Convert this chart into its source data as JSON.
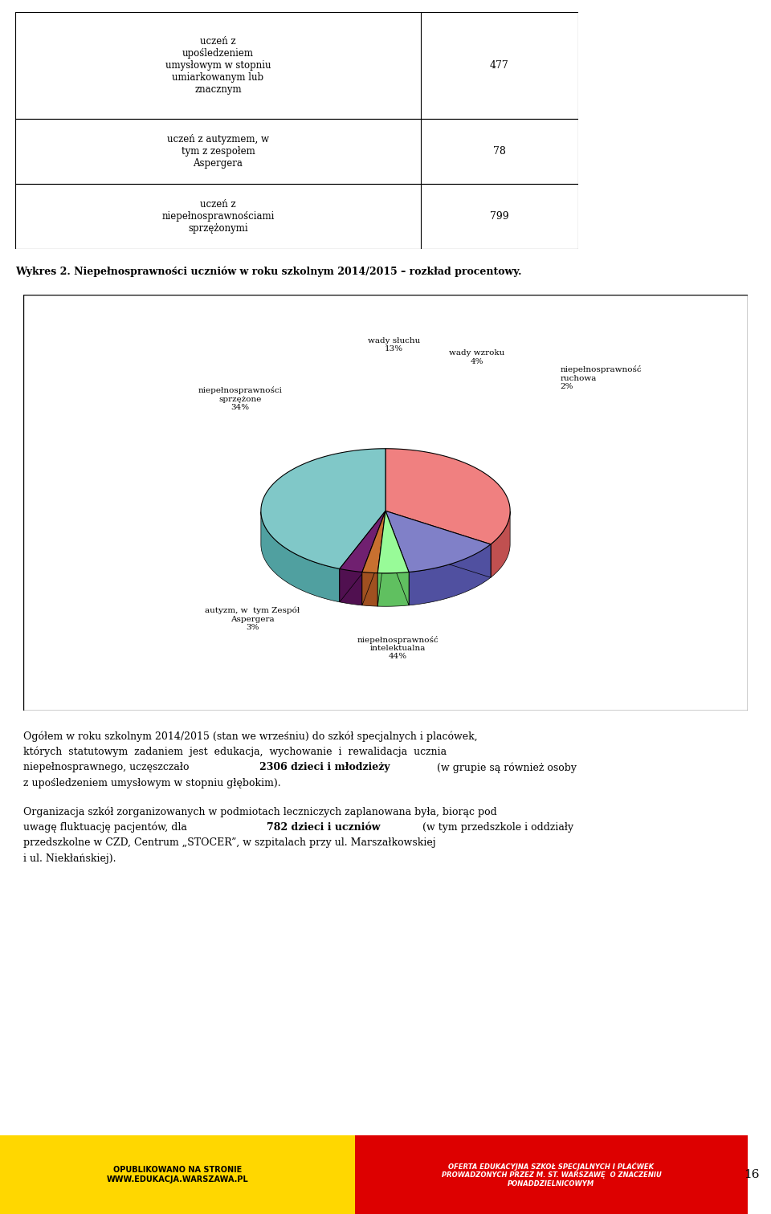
{
  "table_rows": [
    {
      "label": "uczeń z\nupośledzeniem\numysłowym w stopniu\numiarkowanym lub\nznacznym",
      "value": "477"
    },
    {
      "label": "uczeń z autyzmem, w\ntym z zespołem\nAspergera",
      "value": "78"
    },
    {
      "label": "uczeń z\nniepełnosprawnościami\nsprzężonymi",
      "value": "799"
    }
  ],
  "chart_title": "Wykres 2. Niepełnosprawności uczniów w roku szkolnym 2014/2015 – rozkład procentowy.",
  "pie_sizes": [
    34,
    13,
    4,
    2,
    3,
    44
  ],
  "pie_colors": [
    "#F08080",
    "#8080C8",
    "#98FB98",
    "#C87030",
    "#702070",
    "#80C8C8"
  ],
  "pie_side_colors": [
    "#C05050",
    "#5050A0",
    "#60C060",
    "#A05020",
    "#501050",
    "#50A0A0"
  ],
  "pie_labels": [
    "niepełnosprawności\nsprzężone\n34%",
    "wady słuchu\n13%",
    "wady wzroku\n4%",
    "niepełnosprawność\nruchowa\n2%",
    "autyzm, w  tym Zespół\nAspergera\n3%",
    "niepełnosprawność\nintelektualna\n44%"
  ],
  "footer_left_bg": "#FFD700",
  "footer_right_bg": "#DD0000",
  "footer_left_text": "OPUBLIKOWANO NA STRONIE\nWWW.EDUKACJA.WARSZAWA.PL",
  "footer_right_text": "OFERTA EDUKACYJNA SZKOŁ SPECJALNYCH I PLAĆWEK\nPROWADZONYCH PRZEZ M. ST. WARSZAWĘ  O ZNACZENIU\nPONADDZIELNICOWYM",
  "page_number": "16",
  "para1_line1": "Ogółem w roku szkolnym 2014/2015 (stan we wrześniu) do szkół specjalnych i placówek,",
  "para1_line2": "których  statutowym  zadaniem  jest  edukacja,  wychowanie  i  rewalidacja  ucznia",
  "para1_line3a": "niepełnosprawnego, uczęszczało ",
  "para1_line3b": "2306 dzieci i młodzieży",
  "para1_line3c": " (w grupie są również osoby",
  "para1_line4": "z upośledzeniem umysłowym w stopniu głębokim).",
  "para2_line1": "Organizacja szkół zorganizowanych w podmiotach leczniczych zaplanowana była, biorąc pod",
  "para2_line2a": "uwagę fluktuację pacjentów, dla ",
  "para2_line2b": "782 dzieci i uczniów",
  "para2_line2c": " (w tym przedszkole i oddziały",
  "para2_line3": "przedszkolne w CZD, Centrum „STOCER”, w szpitalach przy ul. Marszałkowskiej",
  "para2_line4": "i ul. Niekłańskiej)."
}
